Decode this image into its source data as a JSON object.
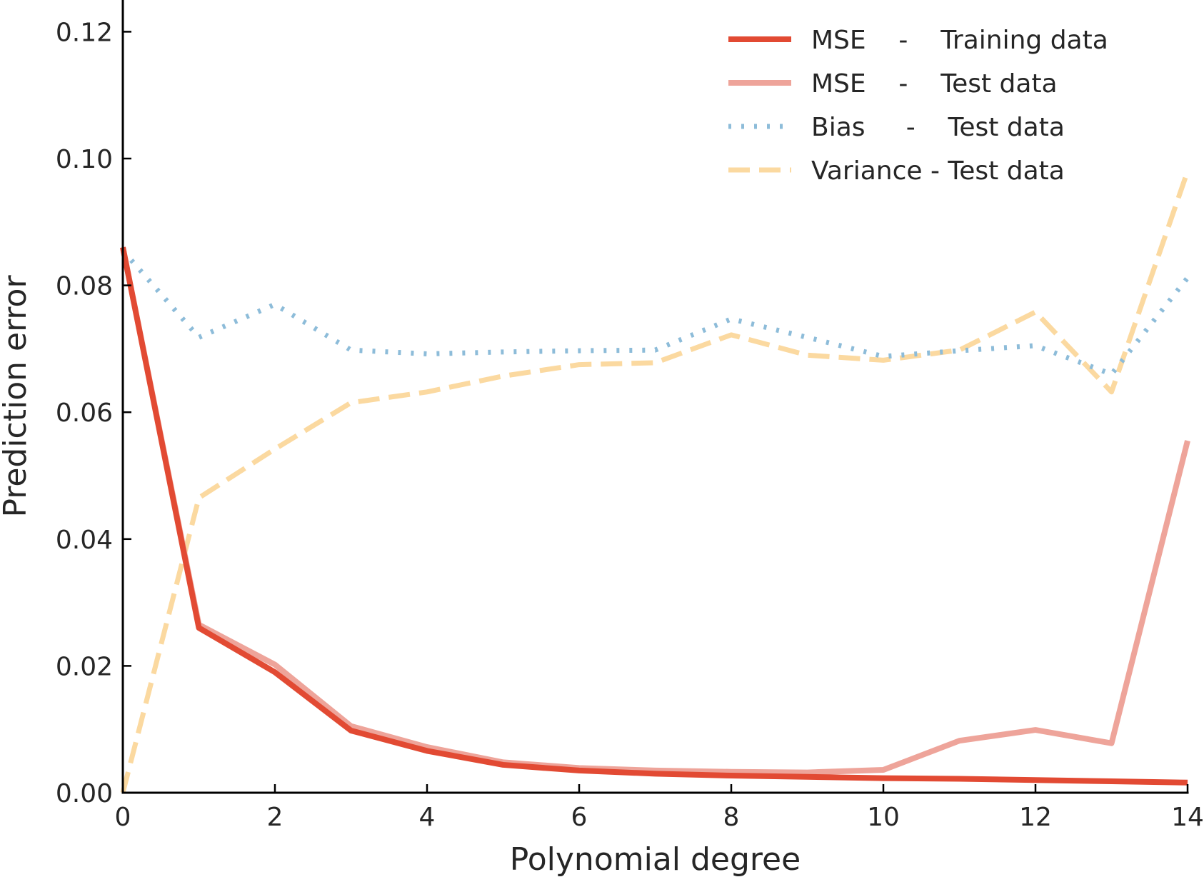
{
  "chart_data": {
    "type": "line",
    "title": "",
    "xlabel": "Polynomial degree",
    "ylabel": "Prediction error",
    "xlim": [
      0,
      14
    ],
    "ylim": [
      0,
      0.125
    ],
    "xticks": [
      "0",
      "2",
      "4",
      "6",
      "8",
      "10",
      "12",
      "14"
    ],
    "yticks": [
      "0.00",
      "0.02",
      "0.04",
      "0.06",
      "0.08",
      "0.10",
      "0.12"
    ],
    "grid": false,
    "legend_position": "top-right",
    "x": [
      0,
      1,
      2,
      3,
      4,
      5,
      6,
      7,
      8,
      9,
      10,
      11,
      12,
      13,
      14
    ],
    "series": [
      {
        "name": "MSE    -    Training data",
        "color": "#e24a33",
        "style": "solid",
        "values": [
          0.086,
          0.026,
          0.019,
          0.0098,
          0.0066,
          0.0044,
          0.0035,
          0.003,
          0.0027,
          0.0025,
          0.0023,
          0.0022,
          0.002,
          0.0018,
          0.0016
        ]
      },
      {
        "name": "MSE    -    Test data",
        "color": "#eea49a",
        "style": "solid",
        "values": [
          0.086,
          0.0265,
          0.0202,
          0.0105,
          0.0072,
          0.0048,
          0.0039,
          0.0035,
          0.0033,
          0.0032,
          0.0036,
          0.0082,
          0.0099,
          0.0078,
          0.0555
        ]
      },
      {
        "name": "Bias     -    Test data",
        "color": "#8dbcd9",
        "style": "dotted",
        "values": [
          0.0855,
          0.0718,
          0.077,
          0.0698,
          0.0692,
          0.0695,
          0.0697,
          0.0698,
          0.0747,
          0.0718,
          0.0688,
          0.0697,
          0.0705,
          0.066,
          0.0812
        ]
      },
      {
        "name": "Variance - Test data",
        "color": "#fbd9a0",
        "style": "dashed",
        "values": [
          0.0,
          0.0465,
          0.0542,
          0.0615,
          0.0632,
          0.0657,
          0.0675,
          0.0678,
          0.0722,
          0.069,
          0.0682,
          0.0698,
          0.0758,
          0.0632,
          0.098
        ]
      }
    ]
  }
}
